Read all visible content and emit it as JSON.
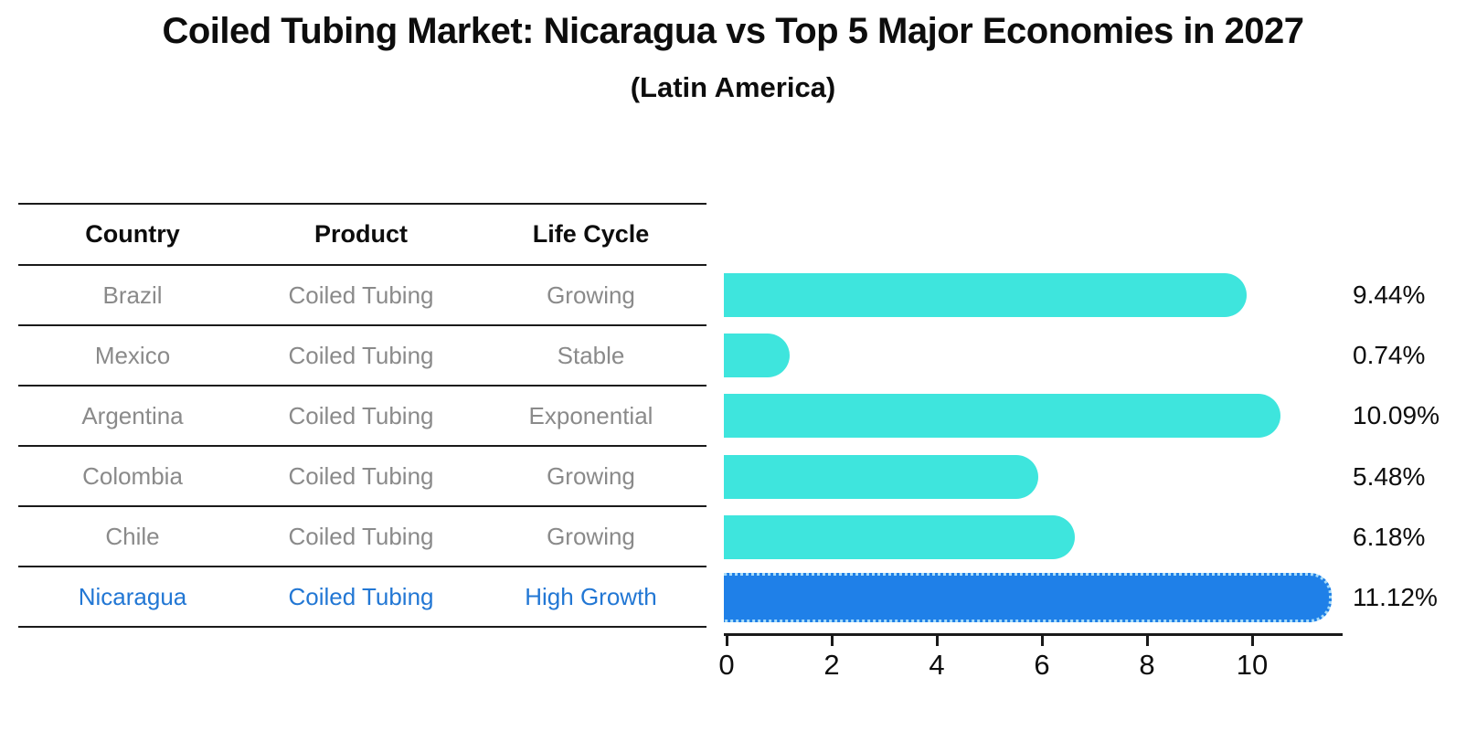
{
  "title": "Coiled Tubing Market: Nicaragua vs Top 5 Major Economies in 2027",
  "subtitle": "(Latin America)",
  "table": {
    "columns": [
      "Country",
      "Product",
      "Life Cycle"
    ],
    "rows": [
      {
        "country": "Brazil",
        "product": "Coiled Tubing",
        "life_cycle": "Growing",
        "highlight": false
      },
      {
        "country": "Mexico",
        "product": "Coiled Tubing",
        "life_cycle": "Stable",
        "highlight": false
      },
      {
        "country": "Argentina",
        "product": "Coiled Tubing",
        "life_cycle": "Exponential",
        "highlight": false
      },
      {
        "country": "Colombia",
        "product": "Coiled Tubing",
        "life_cycle": "Growing",
        "highlight": false
      },
      {
        "country": "Chile",
        "product": "Coiled Tubing",
        "life_cycle": "Growing",
        "highlight": false
      },
      {
        "country": "Nicaragua",
        "product": "Coiled Tubing",
        "life_cycle": "High Growth",
        "highlight": true
      }
    ]
  },
  "chart_data": {
    "type": "bar",
    "orientation": "horizontal",
    "title": "Coiled Tubing Market: Nicaragua vs Top 5 Major Economies in 2027",
    "subtitle": "(Latin America)",
    "categories": [
      "Brazil",
      "Mexico",
      "Argentina",
      "Colombia",
      "Chile",
      "Nicaragua"
    ],
    "values": [
      9.44,
      0.74,
      10.09,
      5.48,
      6.18,
      11.12
    ],
    "value_labels": [
      "9.44%",
      "0.74%",
      "10.09%",
      "5.48%",
      "6.18%",
      "11.12%"
    ],
    "x_ticks": [
      0,
      2,
      4,
      6,
      8,
      10
    ],
    "xlim": [
      0,
      11.7
    ],
    "grid": false,
    "legend": "none",
    "highlight_index": 5,
    "bar_color": "#3ee5dd",
    "highlight_bar_color": "#1f80e8",
    "highlight_text_color": "#2277d4",
    "axis_color": "#1a1a1a",
    "row_text_color": "#8a8a8a"
  }
}
